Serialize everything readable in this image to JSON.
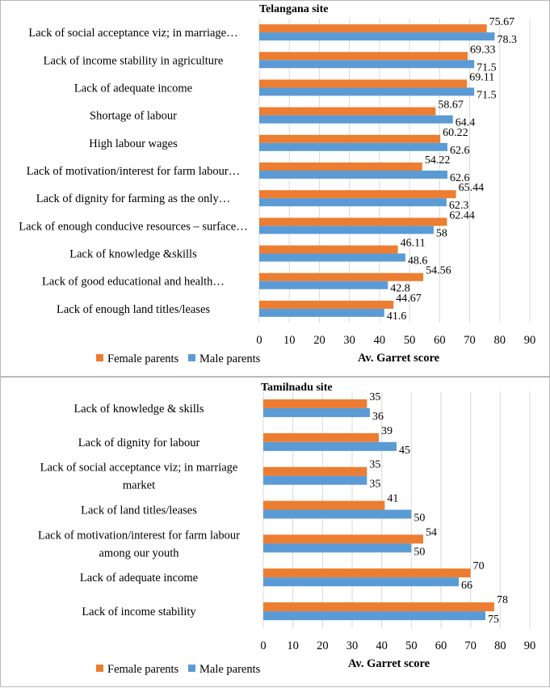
{
  "colors": {
    "female": "#ED7D31",
    "male": "#5B9BD5",
    "grid": "#D9D9D9"
  },
  "chart_data": [
    {
      "type": "bar",
      "title": "Telangana site",
      "xlabel": "Av. Garret score",
      "ylabel": "",
      "xlim": [
        0,
        90
      ],
      "ticks": [
        0,
        10,
        20,
        30,
        40,
        50,
        60,
        70,
        80,
        90
      ],
      "grid": true,
      "legend_position": "bottom-left",
      "categories": [
        [
          "Lack of social acceptance viz; in marriage…"
        ],
        [
          "Lack of income stability in agriculture"
        ],
        [
          "Lack of adequate income"
        ],
        [
          "Shortage of labour"
        ],
        [
          "High labour wages"
        ],
        [
          "Lack of motivation/interest for farm labour…"
        ],
        [
          "Lack of dignity for farming as the only…"
        ],
        [
          "Lack of enough conducive resources – surface…"
        ],
        [
          "Lack of knowledge &skills"
        ],
        [
          "Lack of good educational and health…"
        ],
        [
          "Lack of enough land titles/leases"
        ]
      ],
      "series": [
        {
          "name": "Female parents",
          "values": [
            75.67,
            69.33,
            69.11,
            58.67,
            60.22,
            54.22,
            65.44,
            62.44,
            46.11,
            54.56,
            44.67
          ],
          "labels": [
            "75.67",
            "69.33",
            "69.11",
            "58.67",
            "60.22",
            "54.22",
            "65.44",
            "62.44",
            "46.11",
            "54.56",
            "44.67"
          ]
        },
        {
          "name": "Male parents",
          "values": [
            78.3,
            71.5,
            71.5,
            64.4,
            62.6,
            62.6,
            62.3,
            58,
            48.6,
            42.8,
            41.6
          ],
          "labels": [
            "78.3",
            "71.5",
            "71.5",
            "64.4",
            "62.6",
            "62.6",
            "62.3",
            "58",
            "48.6",
            "42.8",
            "41.6"
          ]
        }
      ]
    },
    {
      "type": "bar",
      "title": "Tamilnadu site",
      "xlabel": "Av. Garret score",
      "ylabel": "",
      "xlim": [
        0,
        90
      ],
      "ticks": [
        0,
        10,
        20,
        30,
        40,
        50,
        60,
        70,
        80,
        90
      ],
      "grid": true,
      "legend_position": "bottom-left",
      "categories": [
        [
          "Lack of knowledge & skills"
        ],
        [
          "Lack of dignity for labour"
        ],
        [
          "Lack of social acceptance viz; in marriage",
          "market"
        ],
        [
          "Lack of land titles/leases"
        ],
        [
          "Lack of motivation/interest for farm labour",
          "among our youth"
        ],
        [
          "Lack of adequate income"
        ],
        [
          "Lack of income stability"
        ]
      ],
      "series": [
        {
          "name": "Female parents",
          "values": [
            35,
            39,
            35,
            41,
            54,
            70,
            78
          ],
          "labels": [
            "35",
            "39",
            "35",
            "41",
            "54",
            "70",
            "78"
          ]
        },
        {
          "name": "Male parents",
          "values": [
            36,
            45,
            35,
            50,
            50,
            66,
            75
          ],
          "labels": [
            "36",
            "45",
            "35",
            "50",
            "50",
            "66",
            "75"
          ]
        }
      ]
    }
  ]
}
